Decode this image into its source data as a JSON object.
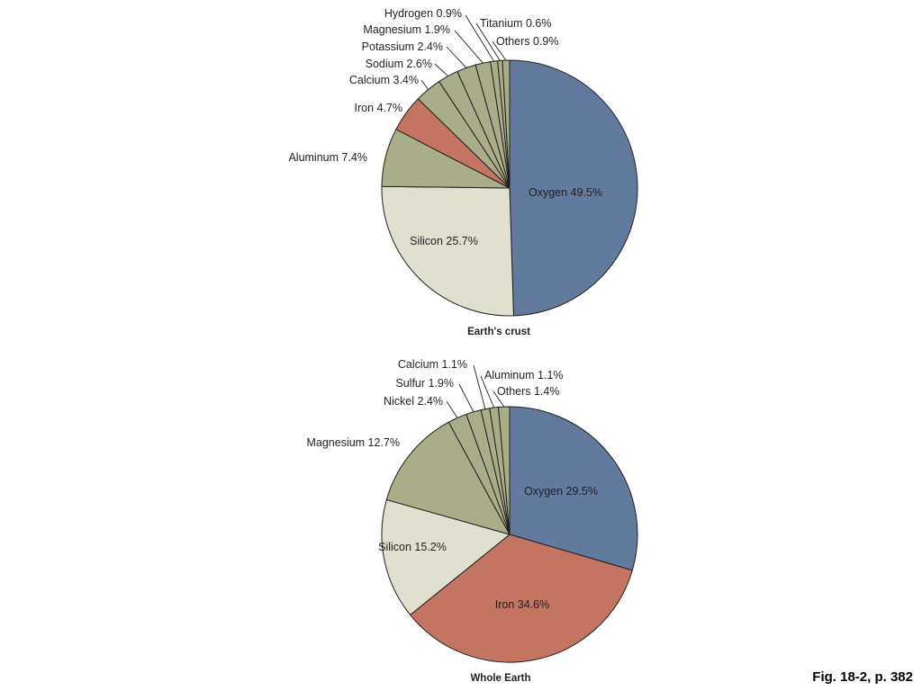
{
  "figure": {
    "caption": "Fig. 18-2, p. 382"
  },
  "chart_data": [
    {
      "type": "pie",
      "title": "Earth's crust",
      "slices": [
        {
          "label": "Oxygen",
          "value": 49.5,
          "color": "#627a9e",
          "label_position": "inside"
        },
        {
          "label": "Silicon",
          "value": 25.7,
          "color": "#e0e0d0",
          "label_position": "inside"
        },
        {
          "label": "Aluminum",
          "value": 7.4,
          "color": "#a9ae89",
          "label_position": "outside"
        },
        {
          "label": "Iron",
          "value": 4.7,
          "color": "#c37562",
          "label_position": "outside"
        },
        {
          "label": "Calcium",
          "value": 3.4,
          "color": "#a9ae89",
          "label_position": "leader"
        },
        {
          "label": "Sodium",
          "value": 2.6,
          "color": "#a9ae89",
          "label_position": "leader"
        },
        {
          "label": "Potassium",
          "value": 2.4,
          "color": "#a9ae89",
          "label_position": "leader"
        },
        {
          "label": "Magnesium",
          "value": 1.9,
          "color": "#a9ae89",
          "label_position": "leader"
        },
        {
          "label": "Hydrogen",
          "value": 0.9,
          "color": "#a9ae89",
          "label_position": "leader"
        },
        {
          "label": "Titanium",
          "value": 0.6,
          "color": "#a9ae89",
          "label_position": "leader"
        },
        {
          "label": "Others",
          "value": 0.9,
          "color": "#a9ae89",
          "label_position": "leader"
        }
      ]
    },
    {
      "type": "pie",
      "title": "Whole Earth",
      "slices": [
        {
          "label": "Oxygen",
          "value": 29.5,
          "color": "#627a9e",
          "label_position": "inside"
        },
        {
          "label": "Iron",
          "value": 34.6,
          "color": "#c37562",
          "label_position": "inside"
        },
        {
          "label": "Silicon",
          "value": 15.2,
          "color": "#e0e0d0",
          "label_position": "inside"
        },
        {
          "label": "Magnesium",
          "value": 12.7,
          "color": "#a9ae89",
          "label_position": "outside"
        },
        {
          "label": "Nickel",
          "value": 2.4,
          "color": "#a9ae89",
          "label_position": "leader"
        },
        {
          "label": "Sulfur",
          "value": 1.9,
          "color": "#a9ae89",
          "label_position": "leader"
        },
        {
          "label": "Calcium",
          "value": 1.1,
          "color": "#a9ae89",
          "label_position": "leader"
        },
        {
          "label": "Aluminum",
          "value": 1.1,
          "color": "#a9ae89",
          "label_position": "leader"
        },
        {
          "label": "Others",
          "value": 1.4,
          "color": "#a9ae89",
          "label_position": "leader"
        }
      ]
    }
  ]
}
